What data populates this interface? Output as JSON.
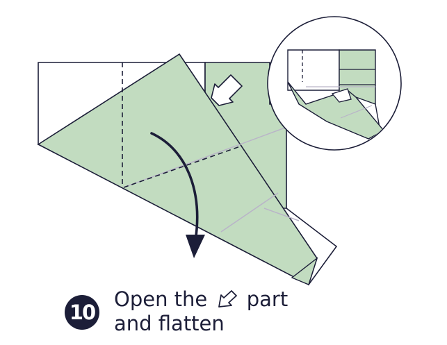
{
  "step": {
    "number": "10",
    "instruction_line1_before": "Open the",
    "instruction_line1_after": "part",
    "instruction_line2": "and flatten"
  },
  "icons": {
    "main_arrow": "hollow-push-arrow-icon",
    "inline_arrow": "hollow-push-arrow-icon",
    "rotate_arrow": "curved-down-arrow-icon"
  },
  "colors": {
    "paper_green": "#c2dcc0",
    "paper_white": "#ffffff",
    "outline": "#1c1e38",
    "crease": "#b9b4c8",
    "valley_fold": "#1c1e38"
  }
}
